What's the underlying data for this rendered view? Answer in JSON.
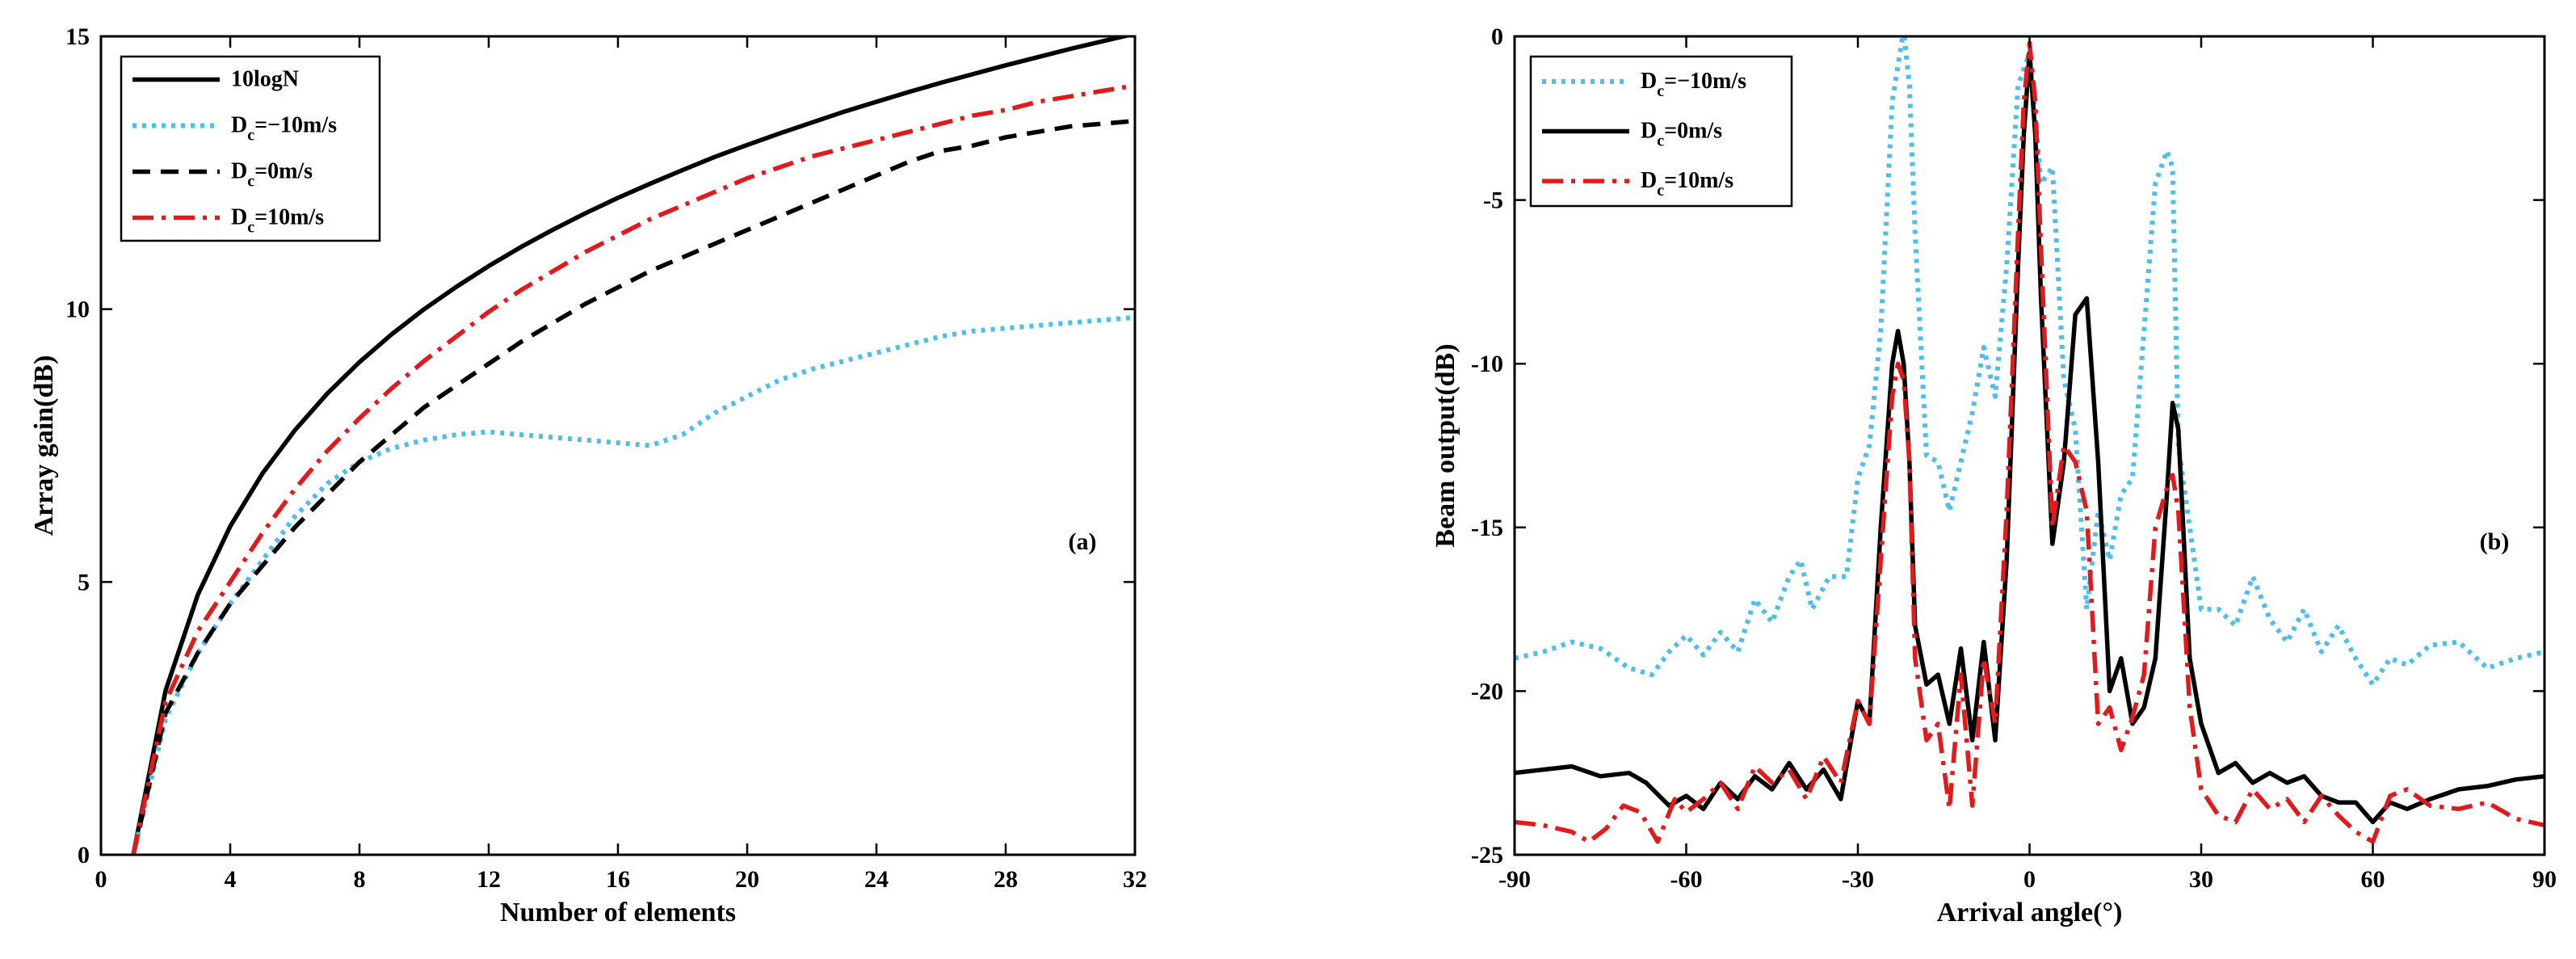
{
  "chart_data": [
    {
      "type": "line",
      "panel_label": "(a)",
      "title": "",
      "xlabel": "Number of elements",
      "ylabel": "Array gain(dB)",
      "xlim": [
        0,
        32
      ],
      "ylim": [
        0,
        15
      ],
      "xticks": [
        0,
        4,
        8,
        12,
        16,
        20,
        24,
        28,
        32
      ],
      "yticks": [
        0,
        5,
        10,
        15
      ],
      "grid": false,
      "legend_position": "top-left",
      "series": [
        {
          "name": "10logN",
          "color": "#000000",
          "style": "solid",
          "legend": {
            "main": "10logN",
            "sub": "",
            "rest": ""
          },
          "x": [
            1,
            2,
            3,
            4,
            5,
            6,
            7,
            8,
            9,
            10,
            11,
            12,
            13,
            14,
            15,
            16,
            17,
            18,
            19,
            20,
            21,
            22,
            23,
            24,
            25,
            26,
            27,
            28,
            29,
            30,
            31,
            32
          ],
          "y": [
            0,
            3.01,
            4.77,
            6.02,
            6.99,
            7.78,
            8.45,
            9.03,
            9.54,
            10,
            10.41,
            10.79,
            11.14,
            11.46,
            11.76,
            12.04,
            12.3,
            12.55,
            12.79,
            13.01,
            13.22,
            13.42,
            13.62,
            13.8,
            13.98,
            14.15,
            14.31,
            14.47,
            14.62,
            14.77,
            14.91,
            15.05
          ]
        },
        {
          "name": "Dc=-10m/s",
          "color": "#4DBEEE",
          "style": "dotted",
          "legend": {
            "main": "D",
            "sub": "c",
            "rest": "=−10m/s"
          },
          "x": [
            1,
            2,
            3,
            4,
            5,
            6,
            7,
            8,
            9,
            10,
            11,
            12,
            13,
            14,
            15,
            16,
            17,
            18,
            19,
            20,
            21,
            22,
            23,
            24,
            25,
            26,
            27,
            28,
            29,
            30,
            31,
            32
          ],
          "y": [
            0,
            2.5,
            3.7,
            4.6,
            5.4,
            6.2,
            6.8,
            7.2,
            7.45,
            7.6,
            7.7,
            7.75,
            7.7,
            7.65,
            7.6,
            7.55,
            7.5,
            7.7,
            8.1,
            8.4,
            8.7,
            8.9,
            9.05,
            9.2,
            9.35,
            9.5,
            9.6,
            9.65,
            9.7,
            9.75,
            9.8,
            9.85
          ]
        },
        {
          "name": "Dc=0m/s",
          "color": "#000000",
          "style": "dashed",
          "legend": {
            "main": "D",
            "sub": "c",
            "rest": "=0m/s"
          },
          "x": [
            1,
            2,
            3,
            4,
            5,
            6,
            7,
            8,
            9,
            10,
            11,
            12,
            13,
            14,
            15,
            16,
            17,
            18,
            19,
            20,
            21,
            22,
            23,
            24,
            25,
            26,
            27,
            28,
            29,
            30,
            31,
            32
          ],
          "y": [
            0,
            2.6,
            3.7,
            4.6,
            5.3,
            6,
            6.6,
            7.2,
            7.7,
            8.2,
            8.6,
            9,
            9.4,
            9.75,
            10.1,
            10.4,
            10.7,
            10.95,
            11.2,
            11.45,
            11.7,
            11.95,
            12.2,
            12.45,
            12.7,
            12.9,
            13,
            13.15,
            13.25,
            13.35,
            13.4,
            13.45
          ]
        },
        {
          "name": "Dc=10m/s",
          "color": "#E31A1C",
          "style": "dashdot",
          "legend": {
            "main": "D",
            "sub": "c",
            "rest": "=10m/s"
          },
          "x": [
            1,
            2,
            3,
            4,
            5,
            6,
            7,
            8,
            9,
            10,
            11,
            12,
            13,
            14,
            15,
            16,
            17,
            18,
            19,
            20,
            21,
            22,
            23,
            24,
            25,
            26,
            27,
            28,
            29,
            30,
            31,
            32
          ],
          "y": [
            0,
            2.8,
            4.1,
            5,
            5.9,
            6.7,
            7.4,
            8,
            8.55,
            9.05,
            9.5,
            9.95,
            10.35,
            10.7,
            11.05,
            11.35,
            11.65,
            11.9,
            12.15,
            12.4,
            12.6,
            12.8,
            12.95,
            13.1,
            13.25,
            13.4,
            13.55,
            13.65,
            13.8,
            13.9,
            14,
            14.1
          ]
        }
      ]
    },
    {
      "type": "line",
      "panel_label": "(b)",
      "title": "",
      "xlabel": "Arrival angle(°)",
      "ylabel": "Beam output(dB)",
      "xlim": [
        -90,
        90
      ],
      "ylim": [
        -25,
        0
      ],
      "xticks": [
        -90,
        -60,
        -30,
        0,
        30,
        60,
        90
      ],
      "yticks": [
        -25,
        -20,
        -15,
        -10,
        -5,
        0
      ],
      "grid": false,
      "legend_position": "top-left",
      "series": [
        {
          "name": "Dc=-10m/s",
          "color": "#4DBEEE",
          "style": "dotted",
          "legend": {
            "main": "D",
            "sub": "c",
            "rest": "=−10m/s"
          },
          "x": [
            -90,
            -85,
            -80,
            -75,
            -70,
            -66,
            -63,
            -60,
            -57,
            -54,
            -51,
            -48,
            -45,
            -42,
            -40,
            -38,
            -35,
            -32,
            -30,
            -28,
            -26,
            -24,
            -22,
            -21,
            -20,
            -18,
            -16,
            -14,
            -12,
            -10,
            -8,
            -6,
            -4,
            -2,
            0,
            2,
            4,
            6,
            8,
            10,
            12,
            14,
            16,
            18,
            20,
            22,
            24,
            25,
            26,
            28,
            30,
            33,
            36,
            39,
            42,
            45,
            48,
            51,
            54,
            57,
            60,
            63,
            66,
            70,
            75,
            80,
            85,
            90
          ],
          "y": [
            -19,
            -18.8,
            -18.5,
            -18.7,
            -19.3,
            -19.5,
            -18.8,
            -18.3,
            -18.9,
            -18.2,
            -18.8,
            -17.2,
            -17.9,
            -16.5,
            -16.0,
            -17.5,
            -16.5,
            -16.5,
            -13.5,
            -12.5,
            -9.0,
            -2.0,
            0.2,
            -1.5,
            -6.0,
            -12.8,
            -13.0,
            -14.5,
            -13.0,
            -11.5,
            -9.5,
            -11.0,
            -7.0,
            -1.5,
            -0.5,
            -4.5,
            -4.0,
            -10.5,
            -12.0,
            -17.5,
            -14.5,
            -16.0,
            -14.0,
            -13.5,
            -9.0,
            -4.5,
            -3.5,
            -4.0,
            -12.5,
            -15.0,
            -17.5,
            -17.5,
            -18.0,
            -16.5,
            -17.8,
            -18.5,
            -17.5,
            -18.8,
            -18.0,
            -19.0,
            -19.8,
            -19.0,
            -19.2,
            -18.6,
            -18.5,
            -19.3,
            -19.0,
            -18.8
          ]
        },
        {
          "name": "Dc=0m/s",
          "color": "#000000",
          "style": "solid",
          "legend": {
            "main": "D",
            "sub": "c",
            "rest": "=0m/s"
          },
          "x": [
            -90,
            -85,
            -80,
            -75,
            -70,
            -67,
            -63,
            -60,
            -57,
            -54,
            -51,
            -48,
            -45,
            -42,
            -39,
            -36,
            -33,
            -30,
            -28,
            -26,
            -24,
            -23,
            -22,
            -21,
            -20,
            -18,
            -16,
            -14,
            -12,
            -10,
            -8,
            -6,
            -4,
            -2,
            -1,
            0,
            1,
            2,
            4,
            6,
            8,
            10,
            12,
            14,
            16,
            18,
            20,
            22,
            24,
            25,
            26,
            28,
            30,
            33,
            36,
            39,
            42,
            45,
            48,
            51,
            54,
            57,
            60,
            63,
            66,
            70,
            75,
            80,
            85,
            90
          ],
          "y": [
            -22.5,
            -22.4,
            -22.3,
            -22.6,
            -22.5,
            -22.8,
            -23.5,
            -23.2,
            -23.6,
            -22.8,
            -23.3,
            -22.6,
            -23,
            -22.2,
            -23,
            -22.4,
            -23.3,
            -20.3,
            -21,
            -15,
            -10,
            -9,
            -10,
            -13,
            -18,
            -19.8,
            -19.5,
            -21,
            -18.7,
            -21.5,
            -18.5,
            -21.5,
            -16,
            -7,
            -3,
            -0.5,
            -3,
            -8,
            -15.5,
            -13,
            -8.5,
            -8,
            -13,
            -20,
            -19,
            -21,
            -20.5,
            -19,
            -14,
            -11.2,
            -12,
            -19,
            -21,
            -22.5,
            -22.2,
            -22.8,
            -22.5,
            -22.8,
            -22.6,
            -23.2,
            -23.4,
            -23.4,
            -24,
            -23.4,
            -23.6,
            -23.3,
            -23,
            -22.9,
            -22.7,
            -22.6
          ]
        },
        {
          "name": "Dc=10m/s",
          "color": "#E31A1C",
          "style": "dashdot",
          "legend": {
            "main": "D",
            "sub": "c",
            "rest": "=10m/s"
          },
          "x": [
            -90,
            -85,
            -80,
            -77,
            -74,
            -71,
            -68,
            -65,
            -62,
            -60,
            -57,
            -54,
            -51,
            -48,
            -45,
            -42,
            -39,
            -36,
            -33,
            -30,
            -28,
            -26,
            -24,
            -23,
            -22,
            -21,
            -20,
            -18,
            -16,
            -14,
            -12,
            -10,
            -8,
            -6,
            -4,
            -2,
            -1,
            0,
            1,
            2,
            4,
            6,
            8,
            10,
            12,
            14,
            16,
            18,
            20,
            22,
            24,
            25,
            26,
            28,
            30,
            33,
            36,
            39,
            42,
            45,
            48,
            51,
            54,
            57,
            60,
            63,
            66,
            70,
            75,
            80,
            85,
            90
          ],
          "y": [
            -24,
            -24.1,
            -24.3,
            -24.6,
            -24.2,
            -23.5,
            -23.7,
            -24.6,
            -23.3,
            -23.7,
            -23.3,
            -22.8,
            -23.6,
            -22.3,
            -22.8,
            -22.4,
            -23.3,
            -22,
            -22.8,
            -20.3,
            -21,
            -16,
            -11,
            -10,
            -10.5,
            -13,
            -19,
            -21.5,
            -21,
            -23.6,
            -19.5,
            -23.5,
            -19,
            -21,
            -14.5,
            -6,
            -2,
            -0.2,
            -2,
            -6.5,
            -15,
            -12.5,
            -13,
            -14.5,
            -21,
            -20.5,
            -21.8,
            -20.8,
            -19.5,
            -15,
            -13.8,
            -13.4,
            -14.5,
            -20.5,
            -23,
            -23.8,
            -24,
            -23,
            -23.6,
            -23.3,
            -24,
            -23.2,
            -23.8,
            -24.3,
            -24.6,
            -23.2,
            -23,
            -23.5,
            -23.6,
            -23.4,
            -23.9,
            -24.1
          ]
        }
      ]
    }
  ]
}
